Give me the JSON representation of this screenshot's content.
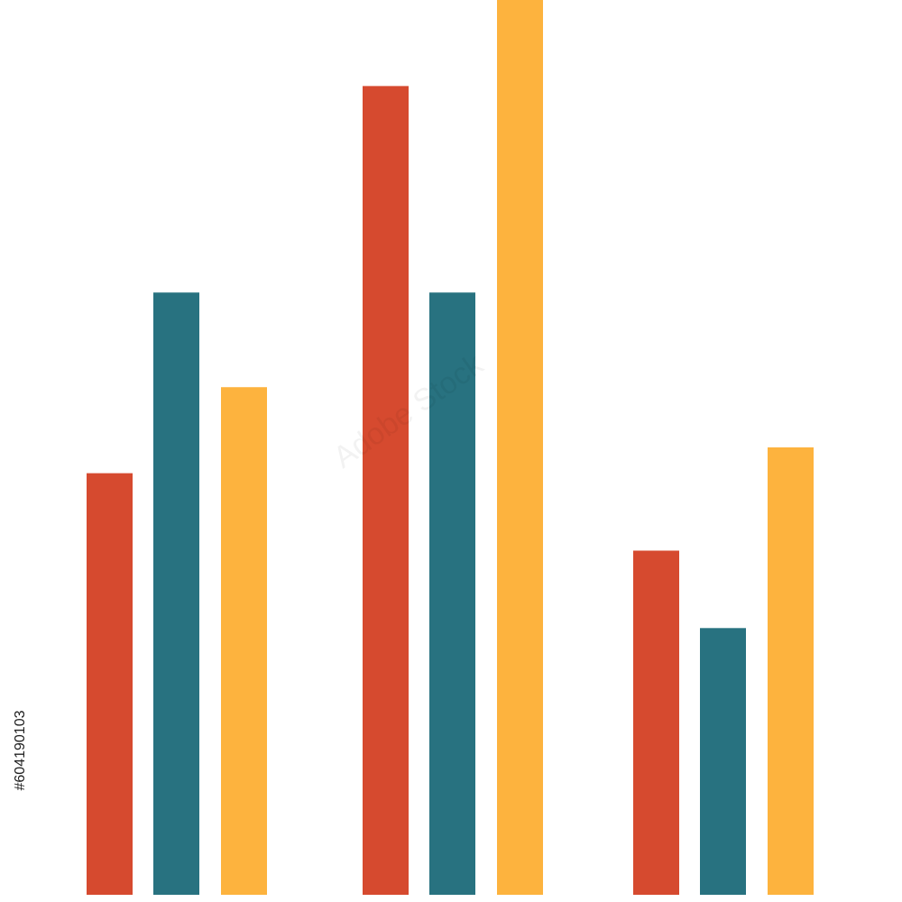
{
  "chart_data": {
    "type": "bar",
    "categories": [
      "",
      "",
      ""
    ],
    "series": [
      {
        "values": [
          49,
          94,
          40
        ],
        "color": "#d64a2f"
      },
      {
        "values": [
          70,
          70,
          31
        ],
        "color": "#287280"
      },
      {
        "values": [
          59,
          104,
          52
        ],
        "color": "#fdb33e"
      }
    ],
    "title": "",
    "xlabel": "",
    "ylabel": "",
    "ylim": [
      0,
      104
    ],
    "grid": false,
    "legend": "none"
  },
  "overlay": {
    "stock_id": "#604190103",
    "watermark_text": "Adobe Stock"
  },
  "colors": {
    "background": "#ffffff"
  }
}
